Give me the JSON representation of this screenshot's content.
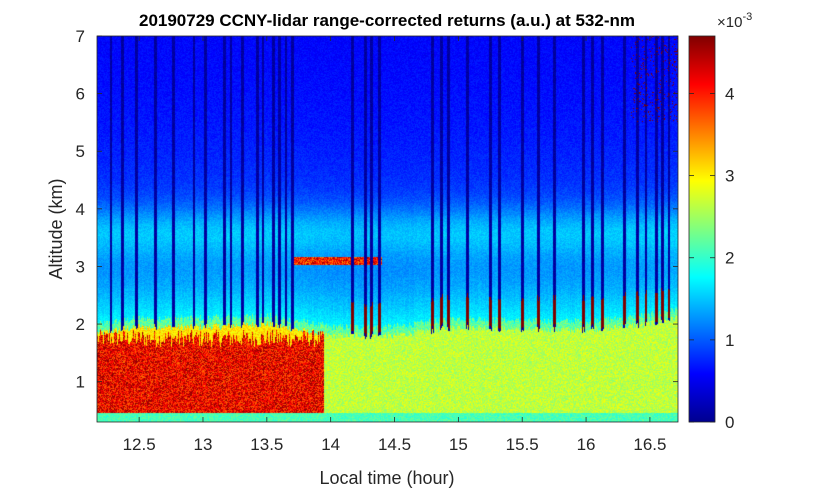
{
  "chart_data": {
    "type": "heatmap",
    "title": "20190729 CCNY-lidar range-corrected returns (a.u.) at 532-nm",
    "xlabel": "Local time (hour)",
    "ylabel": "Altitude (km)",
    "xlim": [
      12.17,
      16.72
    ],
    "ylim": [
      0.3,
      7
    ],
    "xticks": [
      12.5,
      13,
      13.5,
      14,
      14.5,
      15,
      15.5,
      16,
      16.5
    ],
    "xtick_labels": [
      "12.5",
      "13",
      "13.5",
      "14",
      "14.5",
      "15",
      "15.5",
      "16",
      "16.5"
    ],
    "yticks": [
      1,
      2,
      3,
      4,
      5,
      6,
      7
    ],
    "ytick_labels": [
      "1",
      "2",
      "3",
      "4",
      "5",
      "6",
      "7"
    ],
    "colorbar": {
      "colormap": "jet",
      "range": [
        0,
        0.0047
      ],
      "ticks": [
        0,
        1,
        2,
        3,
        4
      ],
      "tick_labels": [
        "0",
        "1",
        "2",
        "3",
        "4"
      ],
      "exponent_label": "×10",
      "exponent_power": "-3"
    },
    "features": {
      "boundary_layer_top_km": [
        {
          "time": 12.2,
          "km": 1.85
        },
        {
          "time": 12.5,
          "km": 1.95
        },
        {
          "time": 13.0,
          "km": 1.95
        },
        {
          "time": 13.5,
          "km": 2.0
        },
        {
          "time": 14.0,
          "km": 1.8
        },
        {
          "time": 14.5,
          "km": 1.8
        },
        {
          "time": 15.0,
          "km": 1.95
        },
        {
          "time": 15.5,
          "km": 1.9
        },
        {
          "time": 16.0,
          "km": 1.9
        },
        {
          "time": 16.5,
          "km": 2.0
        },
        {
          "time": 16.7,
          "km": 2.1
        }
      ],
      "high_aerosol_region": {
        "time_range": [
          12.17,
          13.95
        ],
        "altitude_range_km": [
          0.3,
          1.75
        ]
      },
      "elevated_layer": {
        "time_range": [
          13.7,
          14.4
        ],
        "altitude_km": 3.1
      },
      "cloud_columns_hours": [
        12.28,
        12.37,
        12.48,
        12.63,
        12.77,
        12.93,
        13.02,
        13.17,
        13.22,
        13.31,
        13.43,
        13.47,
        13.55,
        13.6,
        13.65,
        13.7,
        14.17,
        14.27,
        14.32,
        14.38,
        14.8,
        14.87,
        14.92,
        15.07,
        15.25,
        15.32,
        15.5,
        15.63,
        15.75,
        15.98,
        16.05,
        16.13,
        16.3,
        16.4,
        16.47,
        16.55,
        16.6,
        16.65
      ]
    }
  }
}
